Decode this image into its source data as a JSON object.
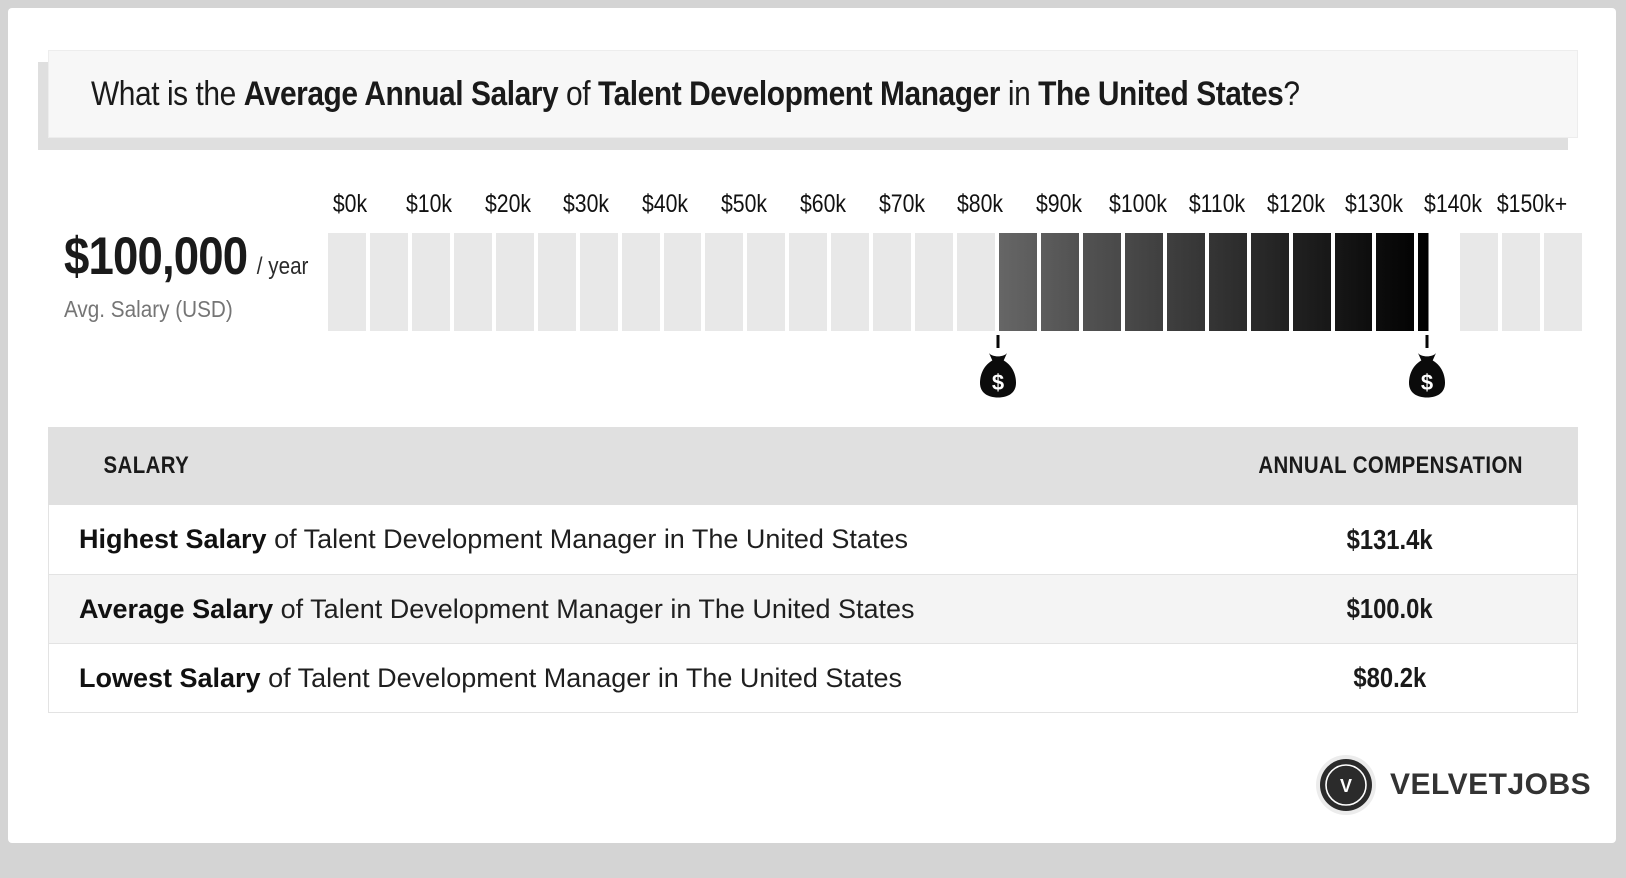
{
  "title": {
    "segments": [
      {
        "text": "What is the ",
        "bold": false
      },
      {
        "text": "Average Annual Salary",
        "bold": true
      },
      {
        "text": " of ",
        "bold": false
      },
      {
        "text": "Talent Development Manager",
        "bold": true
      },
      {
        "text": " in ",
        "bold": false
      },
      {
        "text": "The United States",
        "bold": true
      },
      {
        "text": "?",
        "bold": false
      }
    ]
  },
  "summary": {
    "amount": "$100,000",
    "per": "/ year",
    "caption": "Avg. Salary (USD)"
  },
  "chart_data": {
    "type": "bar",
    "subtype": "salary-range-gauge",
    "axis_labels": [
      "$0k",
      "$10k",
      "$20k",
      "$30k",
      "$40k",
      "$50k",
      "$60k",
      "$70k",
      "$80k",
      "$90k",
      "$100k",
      "$110k",
      "$120k",
      "$130k",
      "$140k",
      "$150k+"
    ],
    "axis_min_k": 0,
    "axis_max_k": 150,
    "cell_step_k": 5,
    "range_low_k": 80.2,
    "range_high_k": 131.4,
    "average_k": 100.0,
    "cell_color": "#e8e8e8",
    "range_color_start": "#666666",
    "range_color_end": "#000000",
    "markers": [
      {
        "value_k": 80.2,
        "icon": "money-bag"
      },
      {
        "value_k": 131.4,
        "icon": "money-bag"
      }
    ]
  },
  "table": {
    "headers": [
      "SALARY",
      "ANNUAL COMPENSATION"
    ],
    "rows": [
      {
        "label_bold": "Highest Salary",
        "label_rest": " of Talent Development Manager in The United States",
        "value": "$131.4k"
      },
      {
        "label_bold": "Average Salary",
        "label_rest": " of Talent Development Manager in The United States",
        "value": "$100.0k"
      },
      {
        "label_bold": "Lowest Salary",
        "label_rest": " of Talent Development Manager in The United States",
        "value": "$80.2k"
      }
    ]
  },
  "logo": {
    "monogram": "V",
    "text": "VELVETJOBS"
  },
  "colors": {
    "frame_background": "#d4d4d4",
    "card_background": "#ffffff",
    "title_box_background": "#f7f7f7",
    "title_box_shadow": "#dfdfdf",
    "table_header_background": "#e0e0e0",
    "table_alt_row_background": "#f4f4f4",
    "logo_circle": "#2b2b2b"
  }
}
